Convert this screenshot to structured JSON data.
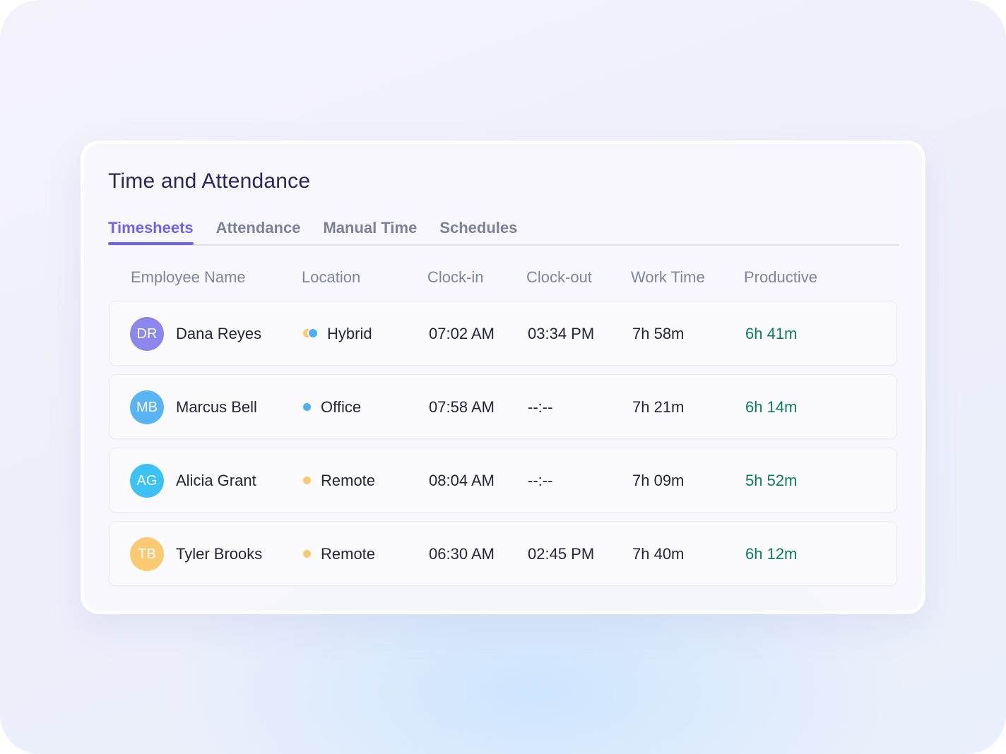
{
  "header": {
    "title": "Time and Attendance"
  },
  "tabs": [
    {
      "label": "Timesheets",
      "active": true
    },
    {
      "label": "Attendance",
      "active": false
    },
    {
      "label": "Manual Time",
      "active": false
    },
    {
      "label": "Schedules",
      "active": false
    }
  ],
  "columns": {
    "name": "Employee Name",
    "location": "Location",
    "clock_in": "Clock-in",
    "clock_out": "Clock-out",
    "work_time": "Work Time",
    "productive": "Productive"
  },
  "rows": [
    {
      "initials": "DR",
      "avatar_color": "#8b87ee",
      "name": "Dana Reyes",
      "location": "Hybrid",
      "location_icon": "hybrid-dot-icon",
      "clock_in": "07:02 AM",
      "clock_out": "03:34 PM",
      "work_time": "7h 58m",
      "productive": "6h 41m"
    },
    {
      "initials": "MB",
      "avatar_color": "#58b4f5",
      "name": "Marcus Bell",
      "location": "Office",
      "location_icon": "office-dot-icon",
      "location_color": "#4cb1f3",
      "clock_in": "07:58 AM",
      "clock_out": "--:--",
      "work_time": "7h 21m",
      "productive": "6h 14m"
    },
    {
      "initials": "AG",
      "avatar_color": "#3cc2f4",
      "name": "Alicia Grant",
      "location": "Remote",
      "location_icon": "remote-dot-icon",
      "location_color": "#f8cb70",
      "clock_in": "08:04 AM",
      "clock_out": "--:--",
      "work_time": "7h 09m",
      "productive": "5h 52m"
    },
    {
      "initials": "TB",
      "avatar_color": "#fbcb73",
      "name": "Tyler Brooks",
      "location": "Remote",
      "location_icon": "remote-dot-icon",
      "location_color": "#f8cb70",
      "clock_in": "06:30 AM",
      "clock_out": "02:45 PM",
      "work_time": "7h 40m",
      "productive": "6h 12m"
    }
  ],
  "colors": {
    "accent": "#6f63f0",
    "productive": "#0b7c56",
    "title": "#2a275e"
  }
}
